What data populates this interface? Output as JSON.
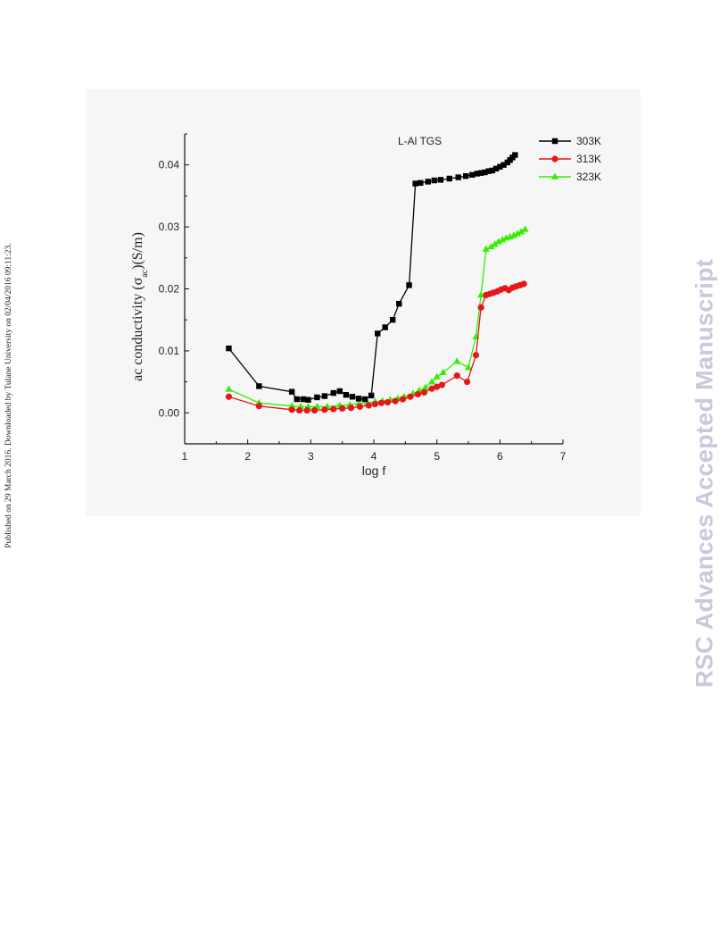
{
  "side_note": "Published on 29 March 2016. Downloaded by Tulane University on 02/04/2016 09:11:23.",
  "watermark": "RSC Advances Accepted Manuscript",
  "chart_data": {
    "type": "line",
    "annotation": "L-Al TGS",
    "xlabel": "log f",
    "ylabel": {
      "main": "ac conductivity (σ",
      "sub": "ac",
      "tail": ")(S/m)"
    },
    "xlim": [
      1,
      7
    ],
    "ylim": [
      -0.005,
      0.045
    ],
    "xticks": [
      1,
      2,
      3,
      4,
      5,
      6,
      7
    ],
    "yticks": [
      0.0,
      0.01,
      0.02,
      0.03,
      0.04
    ],
    "ytick_labels": [
      "0.00",
      "0.01",
      "0.02",
      "0.03",
      "0.04"
    ],
    "legend_position": "top-right",
    "grid": false,
    "series": [
      {
        "name": "303K",
        "color": "#000000",
        "marker": "square",
        "points": [
          [
            1.7,
            0.0104
          ],
          [
            2.18,
            0.0043
          ],
          [
            2.7,
            0.0034
          ],
          [
            2.78,
            0.0022
          ],
          [
            2.88,
            0.0022
          ],
          [
            2.96,
            0.0021
          ],
          [
            3.1,
            0.0025
          ],
          [
            3.22,
            0.0027
          ],
          [
            3.36,
            0.0032
          ],
          [
            3.46,
            0.0035
          ],
          [
            3.56,
            0.0029
          ],
          [
            3.66,
            0.0026
          ],
          [
            3.76,
            0.0023
          ],
          [
            3.86,
            0.0022
          ],
          [
            3.96,
            0.0028
          ],
          [
            4.06,
            0.0128
          ],
          [
            4.18,
            0.0138
          ],
          [
            4.3,
            0.015
          ],
          [
            4.4,
            0.0176
          ],
          [
            4.56,
            0.0206
          ],
          [
            4.66,
            0.037
          ],
          [
            4.74,
            0.0371
          ],
          [
            4.86,
            0.0373
          ],
          [
            4.96,
            0.0375
          ],
          [
            5.06,
            0.0376
          ],
          [
            5.2,
            0.0378
          ],
          [
            5.34,
            0.038
          ],
          [
            5.46,
            0.0382
          ],
          [
            5.56,
            0.0384
          ],
          [
            5.64,
            0.0386
          ],
          [
            5.7,
            0.0387
          ],
          [
            5.76,
            0.0388
          ],
          [
            5.82,
            0.039
          ],
          [
            5.88,
            0.0391
          ],
          [
            5.94,
            0.0394
          ],
          [
            6.0,
            0.0397
          ],
          [
            6.06,
            0.04
          ],
          [
            6.12,
            0.0404
          ],
          [
            6.16,
            0.0408
          ],
          [
            6.2,
            0.0412
          ],
          [
            6.24,
            0.0416
          ]
        ]
      },
      {
        "name": "313K",
        "color": "#e8151b",
        "marker": "circle",
        "points": [
          [
            1.7,
            0.0026
          ],
          [
            2.18,
            0.0011
          ],
          [
            2.7,
            0.0005
          ],
          [
            2.82,
            0.0004
          ],
          [
            2.94,
            0.0004
          ],
          [
            3.06,
            0.0004
          ],
          [
            3.22,
            0.0005
          ],
          [
            3.36,
            0.0006
          ],
          [
            3.5,
            0.0007
          ],
          [
            3.64,
            0.0008
          ],
          [
            3.78,
            0.001
          ],
          [
            3.92,
            0.0012
          ],
          [
            4.02,
            0.0014
          ],
          [
            4.12,
            0.0016
          ],
          [
            4.22,
            0.0017
          ],
          [
            4.34,
            0.0019
          ],
          [
            4.46,
            0.0022
          ],
          [
            4.58,
            0.0026
          ],
          [
            4.7,
            0.003
          ],
          [
            4.8,
            0.0033
          ],
          [
            4.92,
            0.0039
          ],
          [
            5.0,
            0.0042
          ],
          [
            5.08,
            0.0045
          ],
          [
            5.32,
            0.006
          ],
          [
            5.48,
            0.005
          ],
          [
            5.62,
            0.0093
          ],
          [
            5.7,
            0.017
          ],
          [
            5.78,
            0.019
          ],
          [
            5.84,
            0.0192
          ],
          [
            5.9,
            0.0194
          ],
          [
            5.96,
            0.0196
          ],
          [
            6.02,
            0.0199
          ],
          [
            6.08,
            0.0201
          ],
          [
            6.14,
            0.0198
          ],
          [
            6.2,
            0.0202
          ],
          [
            6.26,
            0.0204
          ],
          [
            6.32,
            0.0206
          ],
          [
            6.38,
            0.0208
          ]
        ]
      },
      {
        "name": "323K",
        "color": "#33f000",
        "marker": "triangle",
        "points": [
          [
            1.7,
            0.0038
          ],
          [
            2.18,
            0.0016
          ],
          [
            2.7,
            0.0011
          ],
          [
            2.84,
            0.001
          ],
          [
            2.96,
            0.001
          ],
          [
            3.1,
            0.001
          ],
          [
            3.26,
            0.001
          ],
          [
            3.46,
            0.0012
          ],
          [
            3.62,
            0.0013
          ],
          [
            3.76,
            0.0015
          ],
          [
            3.9,
            0.0016
          ],
          [
            4.02,
            0.0018
          ],
          [
            4.14,
            0.0019
          ],
          [
            4.26,
            0.0021
          ],
          [
            4.38,
            0.0023
          ],
          [
            4.48,
            0.0026
          ],
          [
            4.62,
            0.0031
          ],
          [
            4.72,
            0.0036
          ],
          [
            4.82,
            0.0041
          ],
          [
            4.92,
            0.005
          ],
          [
            5.0,
            0.0058
          ],
          [
            5.1,
            0.0065
          ],
          [
            5.32,
            0.0083
          ],
          [
            5.5,
            0.0073
          ],
          [
            5.62,
            0.0123
          ],
          [
            5.7,
            0.019
          ],
          [
            5.78,
            0.0264
          ],
          [
            5.86,
            0.0268
          ],
          [
            5.92,
            0.0272
          ],
          [
            5.98,
            0.0276
          ],
          [
            6.04,
            0.0279
          ],
          [
            6.1,
            0.0282
          ],
          [
            6.16,
            0.0284
          ],
          [
            6.22,
            0.0286
          ],
          [
            6.28,
            0.0289
          ],
          [
            6.34,
            0.0292
          ],
          [
            6.4,
            0.0296
          ]
        ]
      }
    ]
  }
}
